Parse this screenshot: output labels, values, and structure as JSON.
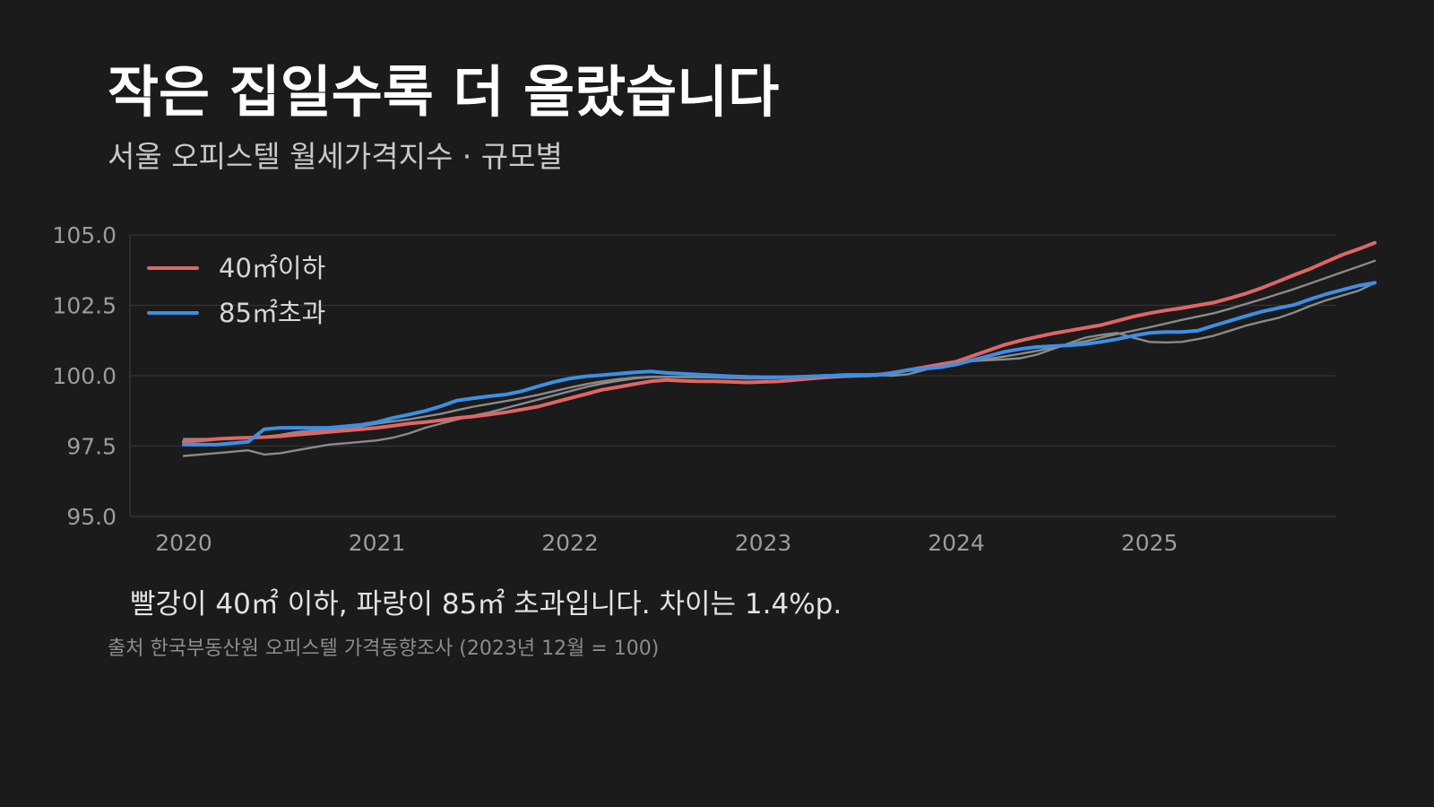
{
  "title": "작은 집일수록 더 올랐습니다",
  "subtitle": "서울 오피스텔 월세가격지수 · 규모별",
  "note": "빨강이 40㎡ 이하, 파랑이 85㎡ 초과입니다. 차이는 1.4%p.",
  "source": "출처 한국부동산원 오피스텔 가격동향조사 (2023년 12월 = 100)",
  "colors": {
    "background": "#1b1b1b",
    "small": "#e06666",
    "large": "#3d8fe6",
    "other": "#8a8a8a",
    "grid": "#333333"
  },
  "chart_data": {
    "type": "line",
    "title": "작은 집일수록 더 올랐습니다",
    "subtitle": "서울 오피스텔 월세가격지수 · 규모별",
    "xlabel": "",
    "ylabel": "",
    "x_start_year": 2020,
    "x_ticks": [
      "2020",
      "2021",
      "2022",
      "2023",
      "2024",
      "2025"
    ],
    "y_ticks": [
      "95.0",
      "97.5",
      "100.0",
      "102.5",
      "105.0"
    ],
    "ylim": [
      95.0,
      105.0
    ],
    "grid": true,
    "legend_position": "top-left",
    "series": [
      {
        "name": "40㎡이하",
        "highlight": true,
        "values": [
          97.65,
          97.7,
          97.75,
          97.78,
          97.8,
          97.82,
          97.85,
          97.9,
          97.95,
          98.0,
          98.05,
          98.1,
          98.15,
          98.22,
          98.3,
          98.35,
          98.42,
          98.5,
          98.55,
          98.62,
          98.7,
          98.8,
          98.9,
          99.05,
          99.2,
          99.35,
          99.5,
          99.6,
          99.7,
          99.8,
          99.85,
          99.82,
          99.8,
          99.8,
          99.78,
          99.76,
          99.78,
          99.8,
          99.85,
          99.9,
          99.95,
          99.98,
          100.0,
          100.02,
          100.1,
          100.2,
          100.3,
          100.4,
          100.5,
          100.7,
          100.9,
          101.1,
          101.25,
          101.38,
          101.5,
          101.6,
          101.7,
          101.8,
          101.95,
          102.1,
          102.22,
          102.32,
          102.4,
          102.5,
          102.6,
          102.75,
          102.92,
          103.12,
          103.35,
          103.58,
          103.8,
          104.05,
          104.3,
          104.5,
          104.72
        ]
      },
      {
        "name": "85㎡초과",
        "highlight": true,
        "values": [
          97.55,
          97.55,
          97.55,
          97.6,
          97.65,
          98.1,
          98.15,
          98.15,
          98.15,
          98.15,
          98.2,
          98.25,
          98.35,
          98.5,
          98.62,
          98.75,
          98.92,
          99.12,
          99.2,
          99.27,
          99.33,
          99.45,
          99.62,
          99.78,
          99.9,
          99.98,
          100.02,
          100.07,
          100.12,
          100.15,
          100.1,
          100.07,
          100.04,
          100.01,
          99.98,
          99.96,
          99.95,
          99.95,
          99.95,
          99.97,
          100.0,
          100.0,
          100.0,
          100.02,
          100.08,
          100.2,
          100.25,
          100.3,
          100.4,
          100.55,
          100.7,
          100.85,
          100.95,
          101.02,
          101.05,
          101.08,
          101.12,
          101.2,
          101.3,
          101.42,
          101.52,
          101.55,
          101.55,
          101.6,
          101.78,
          101.95,
          102.12,
          102.28,
          102.4,
          102.52,
          102.72,
          102.9,
          103.05,
          103.2,
          103.3
        ]
      },
      {
        "name": "",
        "highlight": false,
        "values": [
          97.75,
          97.75,
          97.76,
          97.78,
          97.8,
          97.83,
          97.9,
          98.0,
          98.05,
          98.1,
          98.15,
          98.2,
          98.3,
          98.38,
          98.45,
          98.55,
          98.65,
          98.78,
          98.9,
          99.0,
          99.1,
          99.2,
          99.32,
          99.45,
          99.58,
          99.7,
          99.8,
          99.88,
          99.93,
          99.96,
          99.96,
          99.95,
          99.95,
          99.94,
          99.92,
          99.9,
          99.9,
          99.92,
          99.95,
          99.98,
          100.02,
          100.05,
          100.05,
          100.06,
          100.1,
          100.2,
          100.3,
          100.38,
          100.45,
          100.52,
          100.6,
          100.68,
          100.78,
          100.88,
          101.0,
          101.1,
          101.22,
          101.35,
          101.48,
          101.6,
          101.72,
          101.85,
          101.98,
          102.1,
          102.22,
          102.38,
          102.55,
          102.72,
          102.9,
          103.08,
          103.28,
          103.48,
          103.68,
          103.88,
          104.08
        ]
      },
      {
        "name": "",
        "highlight": false,
        "values": [
          97.15,
          97.2,
          97.25,
          97.3,
          97.35,
          97.2,
          97.25,
          97.35,
          97.45,
          97.55,
          97.6,
          97.65,
          97.7,
          97.8,
          97.95,
          98.15,
          98.3,
          98.45,
          98.58,
          98.7,
          98.85,
          99.0,
          99.15,
          99.3,
          99.45,
          99.6,
          99.72,
          99.82,
          99.9,
          99.95,
          99.96,
          99.96,
          99.95,
          99.95,
          99.94,
          99.93,
          99.93,
          99.95,
          99.98,
          100.0,
          100.02,
          100.04,
          100.05,
          100.02,
          100.0,
          100.05,
          100.2,
          100.35,
          100.45,
          100.52,
          100.55,
          100.58,
          100.62,
          100.75,
          100.95,
          101.15,
          101.35,
          101.45,
          101.52,
          101.35,
          101.2,
          101.18,
          101.2,
          101.3,
          101.42,
          101.6,
          101.78,
          101.92,
          102.05,
          102.25,
          102.48,
          102.68,
          102.85,
          103.02,
          103.3
        ]
      }
    ]
  }
}
